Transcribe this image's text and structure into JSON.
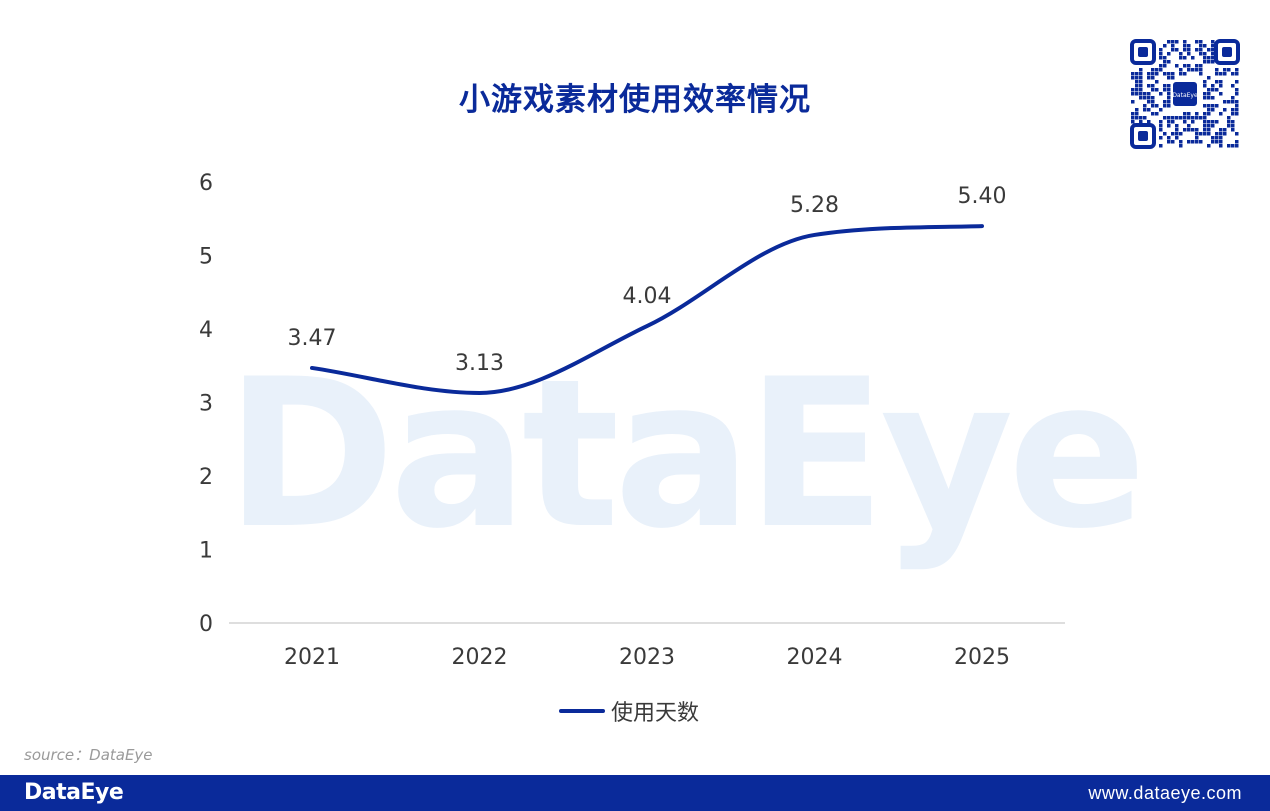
{
  "chart_data": {
    "type": "line",
    "title": "小游戏素材使用效率情况",
    "categories": [
      "2021",
      "2022",
      "2023",
      "2024",
      "2025"
    ],
    "series": [
      {
        "name": "使用天数",
        "values": [
          3.47,
          3.13,
          4.04,
          5.28,
          5.4
        ],
        "color": "#0a2a9a"
      }
    ],
    "data_labels": [
      "3.47",
      "3.13",
      "4.04",
      "5.28",
      "5.40"
    ],
    "yticks": [
      "0",
      "1",
      "2",
      "3",
      "4",
      "5",
      "6"
    ],
    "ylim": [
      0,
      6
    ],
    "grid": false,
    "smooth": true,
    "legend_position": "bottom"
  },
  "watermark": "DataEye",
  "qr_center_label": "DataEye",
  "source_text": "source：DataEye",
  "footer": {
    "logo": "DataEye",
    "url": "www.dataeye.com"
  },
  "colors": {
    "accent": "#0a2a9a",
    "watermark": "#e9f1fa",
    "text": "#3a3a3a"
  }
}
